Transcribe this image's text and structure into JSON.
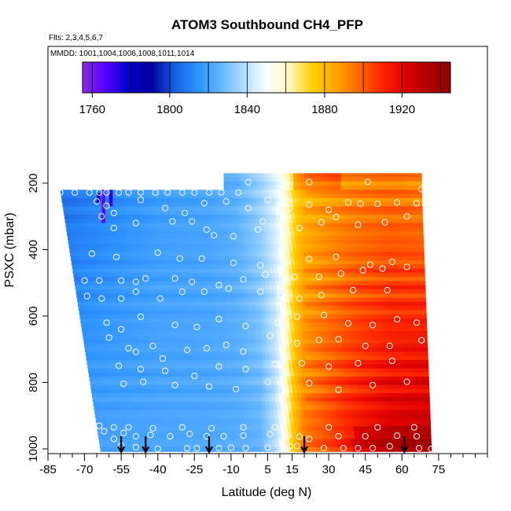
{
  "chart_data": {
    "type": "heatmap",
    "title": "ATOM3 Southbound CH4_PFP",
    "subtitle_flights": "Flts: 2,3,4,5,6,7",
    "subtitle_dates": "MMDD: 1001,1004,1006,1008,1011,1014",
    "xlabel": "Latitude (deg N)",
    "ylabel": "PSXC (mbar)",
    "xlim": [
      -85,
      95
    ],
    "ylim": [
      1000,
      0
    ],
    "x_ticks": [
      -85,
      -70,
      -55,
      -40,
      -25,
      -10,
      5,
      15,
      30,
      45,
      60,
      75
    ],
    "x_minor_ticks": [
      -80,
      -75,
      -65,
      -60,
      -50,
      -45,
      -35,
      -30,
      -20,
      -15,
      -5,
      0,
      10,
      20,
      25,
      35,
      40,
      50,
      55,
      65,
      70,
      80,
      85,
      90,
      95
    ],
    "y_ticks": [
      200,
      400,
      600,
      800,
      1000
    ],
    "colorbar": {
      "min": 1755,
      "max": 1945,
      "ticks": [
        1760,
        1800,
        1840,
        1880,
        1920
      ],
      "colors": [
        "#8a2be2",
        "#5500ff",
        "#0000c8",
        "#0000a0",
        "#1a5fe0",
        "#2d93ff",
        "#62b4ff",
        "#b0dcff",
        "#f8ffff",
        "#fff8c0",
        "#ffd000",
        "#ffa500",
        "#ff6a00",
        "#ff2a00",
        "#e00000",
        "#b00000",
        "#900000"
      ]
    },
    "field": {
      "description": "CH4 curtain interpolated in latitude and pressure",
      "lat_nodes": [
        -85,
        -60,
        -40,
        -20,
        -8,
        2,
        8,
        12,
        16,
        20,
        30,
        40,
        55,
        72
      ],
      "ch4_surface": [
        1818,
        1820,
        1821,
        1822,
        1823,
        1826,
        1838,
        1855,
        1880,
        1895,
        1905,
        1915,
        1925,
        1930
      ],
      "ch4_upper": [
        1805,
        1812,
        1818,
        1820,
        1825,
        1835,
        1845,
        1855,
        1872,
        1882,
        1888,
        1892,
        1895,
        1892
      ]
    },
    "profile_longitudes_marked": [
      -55,
      -45,
      -19,
      20,
      61
    ],
    "sample_points": [
      [
        -80,
        228
      ],
      [
        -74,
        228
      ],
      [
        -68,
        228
      ],
      [
        -64,
        228
      ],
      [
        -61,
        228
      ],
      [
        -56,
        228
      ],
      [
        -52,
        228
      ],
      [
        -47,
        228
      ],
      [
        -41,
        228
      ],
      [
        -36,
        228
      ],
      [
        -30,
        228
      ],
      [
        -25,
        228
      ],
      [
        -19,
        228
      ],
      [
        -14,
        228
      ],
      [
        -7,
        228
      ],
      [
        -65,
        255
      ],
      [
        -61,
        268
      ],
      [
        -58,
        290
      ],
      [
        -47,
        250
      ],
      [
        -37,
        275
      ],
      [
        -29,
        290
      ],
      [
        -21,
        260
      ],
      [
        -12,
        255
      ],
      [
        -3,
        275
      ],
      [
        5,
        250
      ],
      [
        10,
        265
      ],
      [
        14,
        275
      ],
      [
        22,
        265
      ],
      [
        30,
        280
      ],
      [
        38,
        258
      ],
      [
        43,
        262
      ],
      [
        50,
        262
      ],
      [
        58,
        258
      ],
      [
        66,
        260
      ],
      [
        -63,
        300
      ],
      [
        -58,
        335
      ],
      [
        -49,
        320
      ],
      [
        -34,
        315
      ],
      [
        -26,
        315
      ],
      [
        -20,
        340
      ],
      [
        -17,
        357
      ],
      [
        -9,
        360
      ],
      [
        1,
        340
      ],
      [
        3,
        315
      ],
      [
        10,
        300
      ],
      [
        18,
        335
      ],
      [
        27,
        318
      ],
      [
        33,
        302
      ],
      [
        42,
        325
      ],
      [
        53,
        318
      ],
      [
        62,
        300
      ],
      [
        -67,
        412
      ],
      [
        -57,
        422
      ],
      [
        -40,
        409
      ],
      [
        -31,
        427
      ],
      [
        -22,
        427
      ],
      [
        -9,
        440
      ],
      [
        2,
        447
      ],
      [
        10,
        463
      ],
      [
        22,
        428
      ],
      [
        33,
        422
      ],
      [
        47,
        445
      ],
      [
        56,
        437
      ],
      [
        -3,
        197
      ],
      [
        22,
        197
      ],
      [
        46,
        196
      ],
      [
        68,
        218
      ],
      [
        -70,
        493
      ],
      [
        -64,
        493
      ],
      [
        -55,
        493
      ],
      [
        -49,
        497
      ],
      [
        -45,
        487
      ],
      [
        -33,
        487
      ],
      [
        -26,
        497
      ],
      [
        -15,
        507
      ],
      [
        -5,
        490
      ],
      [
        4,
        475
      ],
      [
        16,
        482
      ],
      [
        26,
        482
      ],
      [
        35,
        472
      ],
      [
        44,
        462
      ],
      [
        52,
        457
      ],
      [
        62,
        452
      ],
      [
        -69,
        540
      ],
      [
        -63,
        547
      ],
      [
        -55,
        547
      ],
      [
        -49,
        527
      ],
      [
        -39,
        547
      ],
      [
        -30,
        527
      ],
      [
        -21,
        527
      ],
      [
        -11,
        517
      ],
      [
        2,
        527
      ],
      [
        10,
        537
      ],
      [
        18,
        547
      ],
      [
        27,
        537
      ],
      [
        40,
        522
      ],
      [
        54,
        522
      ],
      [
        -61,
        620
      ],
      [
        -55,
        640
      ],
      [
        -47,
        602
      ],
      [
        -33,
        627
      ],
      [
        -24,
        633
      ],
      [
        -15,
        609
      ],
      [
        -4,
        630
      ],
      [
        9,
        620
      ],
      [
        17,
        602
      ],
      [
        28,
        597
      ],
      [
        38,
        622
      ],
      [
        48,
        627
      ],
      [
        58,
        610
      ],
      [
        66,
        620
      ],
      [
        -60,
        665
      ],
      [
        -52,
        697
      ],
      [
        -49,
        708
      ],
      [
        -42,
        690
      ],
      [
        -38,
        728
      ],
      [
        -28,
        702
      ],
      [
        -20,
        697
      ],
      [
        -12,
        687
      ],
      [
        -5,
        707
      ],
      [
        6,
        660
      ],
      [
        17,
        682
      ],
      [
        26,
        672
      ],
      [
        34,
        670
      ],
      [
        45,
        690
      ],
      [
        55,
        690
      ],
      [
        68,
        673
      ],
      [
        -56,
        750
      ],
      [
        -47,
        760
      ],
      [
        -37,
        765
      ],
      [
        -25,
        780
      ],
      [
        -15,
        752
      ],
      [
        -4,
        760
      ],
      [
        8,
        745
      ],
      [
        19,
        742
      ],
      [
        30,
        752
      ],
      [
        42,
        742
      ],
      [
        56,
        735
      ],
      [
        -54,
        804
      ],
      [
        -46,
        798
      ],
      [
        -33,
        808
      ],
      [
        -19,
        812
      ],
      [
        -8,
        820
      ],
      [
        5,
        798
      ],
      [
        22,
        802
      ],
      [
        34,
        822
      ],
      [
        48,
        808
      ],
      [
        62,
        798
      ],
      [
        -62,
        947
      ],
      [
        -58,
        970
      ],
      [
        -54,
        952
      ],
      [
        -49,
        962
      ],
      [
        -43,
        958
      ],
      [
        -35,
        962
      ],
      [
        -27,
        955
      ],
      [
        -20,
        962
      ],
      [
        -13,
        962
      ],
      [
        -5,
        960
      ],
      [
        6,
        956
      ],
      [
        13,
        960
      ],
      [
        18,
        963
      ],
      [
        22,
        970
      ],
      [
        34,
        962
      ],
      [
        45,
        962
      ],
      [
        58,
        960
      ],
      [
        66,
        962
      ],
      [
        -55,
        990
      ],
      [
        -49,
        995
      ],
      [
        -40,
        1000
      ],
      [
        -28,
        998
      ],
      [
        -24,
        998
      ],
      [
        -15,
        998
      ],
      [
        -10,
        996
      ],
      [
        -4,
        998
      ],
      [
        5,
        996
      ],
      [
        12,
        998
      ],
      [
        14,
        992
      ],
      [
        17,
        992
      ],
      [
        28,
        998
      ],
      [
        36,
        998
      ],
      [
        42,
        998
      ],
      [
        48,
        998
      ],
      [
        55,
        992
      ],
      [
        67,
        998
      ],
      [
        72,
        1000
      ],
      [
        -69,
        935
      ],
      [
        -64,
        930
      ],
      [
        -58,
        935
      ],
      [
        -52,
        935
      ],
      [
        -42,
        938
      ],
      [
        -30,
        935
      ],
      [
        -18,
        938
      ],
      [
        -5,
        935
      ],
      [
        8,
        935
      ],
      [
        30,
        935
      ],
      [
        50,
        935
      ],
      [
        65,
        935
      ]
    ]
  }
}
